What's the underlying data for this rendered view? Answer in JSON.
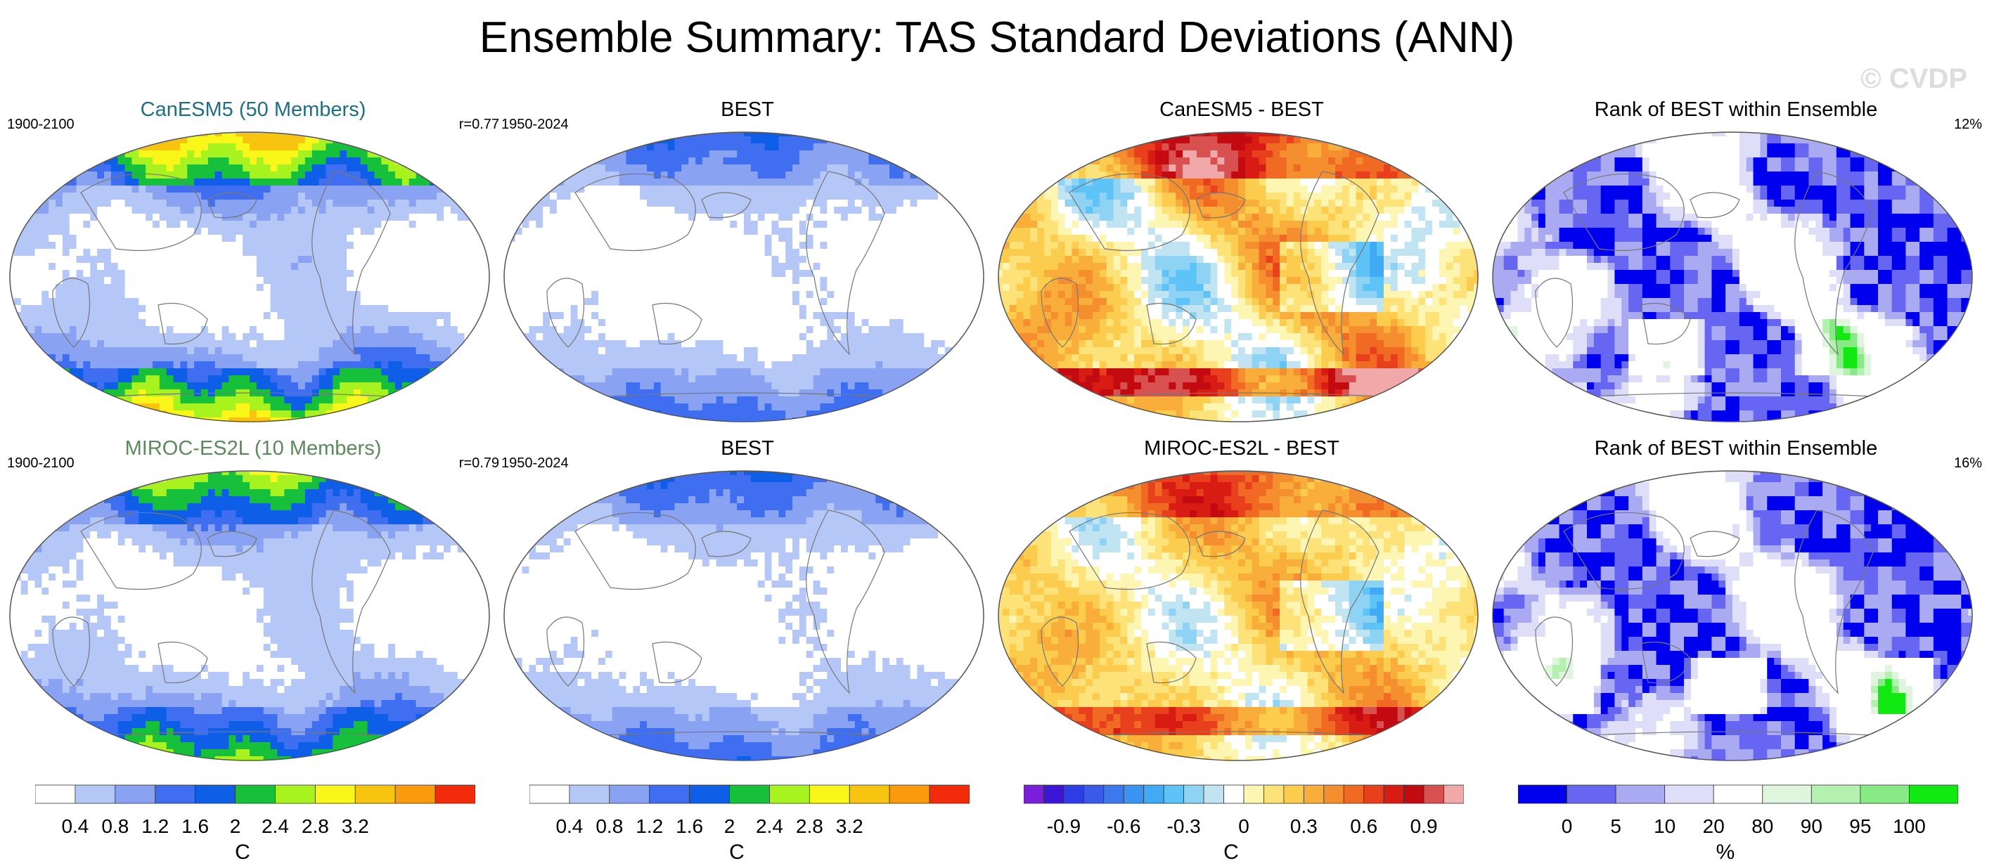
{
  "title": "Ensemble Summary: TAS Standard Deviations (ANN)",
  "watermark": "© CVDP",
  "rows": [
    {
      "panels": [
        {
          "title": "CanESM5 (50 Members)",
          "title_color": "#1f6e84",
          "left": "1900-2100",
          "right": "r=0.77",
          "kind": "std_model",
          "amp": 1.0
        },
        {
          "title": "BEST",
          "title_color": "#000000",
          "left": "1950-2024",
          "right": "",
          "kind": "std_obs",
          "amp": 0.55
        },
        {
          "title": "CanESM5 - BEST",
          "title_color": "#000000",
          "left": "",
          "right": "",
          "kind": "diff",
          "amp": 1.0
        },
        {
          "title": "Rank of BEST within Ensemble",
          "title_color": "#000000",
          "left": "",
          "right": "12%",
          "kind": "rank",
          "amp": 1.0
        }
      ]
    },
    {
      "panels": [
        {
          "title": "MIROC-ES2L (10 Members)",
          "title_color": "#5c8a5c",
          "left": "1900-2100",
          "right": "r=0.79",
          "kind": "std_model",
          "amp": 0.75
        },
        {
          "title": "BEST",
          "title_color": "#000000",
          "left": "1950-2024",
          "right": "",
          "kind": "std_obs",
          "amp": 0.55
        },
        {
          "title": "MIROC-ES2L - BEST",
          "title_color": "#000000",
          "left": "",
          "right": "",
          "kind": "diff",
          "amp": 0.7
        },
        {
          "title": "Rank of BEST within Ensemble",
          "title_color": "#000000",
          "left": "",
          "right": "16%",
          "kind": "rank",
          "amp": 0.9
        }
      ]
    }
  ],
  "chart_data": {
    "type": "heatmap",
    "colorbars": [
      {
        "name": "std",
        "unit": "C",
        "levels": [
          0.4,
          0.8,
          1.2,
          1.6,
          2,
          2.4,
          2.8,
          3.2
        ],
        "tick_labels": [
          "0.4",
          "0.8",
          "1.2",
          "1.6",
          "2",
          "2.4",
          "2.8",
          "3.2"
        ],
        "colors": [
          "#ffffff",
          "#b4c7f7",
          "#8aa2f2",
          "#3f6ff0",
          "#0f5ee8",
          "#16c03a",
          "#a7f21f",
          "#f9f719",
          "#f8c40f",
          "#f99b0c",
          "#f42b0a"
        ]
      },
      {
        "name": "std_obs",
        "unit": "C",
        "levels": [
          0.4,
          0.8,
          1.2,
          1.6,
          2,
          2.4,
          2.8,
          3.2
        ],
        "tick_labels": [
          "0.4",
          "0.8",
          "1.2",
          "1.6",
          "2",
          "2.4",
          "2.8",
          "3.2"
        ],
        "colors": [
          "#ffffff",
          "#b4c7f7",
          "#8aa2f2",
          "#3f6ff0",
          "#0f5ee8",
          "#16c03a",
          "#a7f21f",
          "#f9f719",
          "#f8c40f",
          "#f99b0c",
          "#f42b0a"
        ]
      },
      {
        "name": "diff",
        "unit": "C",
        "levels": [
          -1.0,
          -0.9,
          -0.8,
          -0.7,
          -0.6,
          -0.5,
          -0.4,
          -0.3,
          -0.2,
          -0.1,
          0,
          0.1,
          0.2,
          0.3,
          0.4,
          0.5,
          0.6,
          0.7,
          0.8,
          0.9,
          1.0
        ],
        "tick_labels": [
          "-0.9",
          "-0.6",
          "-0.3",
          "0",
          "0.3",
          "0.6",
          "0.9"
        ],
        "tick_values": [
          -0.9,
          -0.6,
          -0.3,
          0,
          0.3,
          0.6,
          0.9
        ],
        "colors": [
          "#7a1fd9",
          "#3b16d8",
          "#2e3de6",
          "#3a5be8",
          "#3c79ee",
          "#3d93f2",
          "#41aaf5",
          "#5ec3f7",
          "#8fd3f4",
          "#c1e4f2",
          "#ffffff",
          "#fdf6b3",
          "#fde27a",
          "#fccc4f",
          "#f9ad3a",
          "#f58e2e",
          "#f06a24",
          "#e8401c",
          "#d81c14",
          "#c20a10",
          "#d85050",
          "#f0a8a8"
        ]
      },
      {
        "name": "rank",
        "unit": "%",
        "levels": [
          0,
          5,
          10,
          20,
          80,
          90,
          95,
          100
        ],
        "tick_labels": [
          "0",
          "5",
          "10",
          "20",
          "80",
          "90",
          "95",
          "100"
        ],
        "colors": [
          "#0000ee",
          "#6666f2",
          "#aaaaf2",
          "#dedef8",
          "#ffffff",
          "#dff5de",
          "#b4f0b0",
          "#88ea84",
          "#12e812"
        ]
      }
    ],
    "panels_summary": [
      {
        "panel": "CanESM5 (50 Members)",
        "period": "1900-2100",
        "pattern_correlation": 0.77
      },
      {
        "panel": "MIROC-ES2L (10 Members)",
        "period": "1900-2100",
        "pattern_correlation": 0.79
      },
      {
        "panel": "BEST",
        "period": "1950-2024"
      },
      {
        "panel": "Rank of BEST within Ensemble (CanESM5)",
        "value_percent": 12
      },
      {
        "panel": "Rank of BEST within Ensemble (MIROC-ES2L)",
        "value_percent": 16
      }
    ]
  }
}
